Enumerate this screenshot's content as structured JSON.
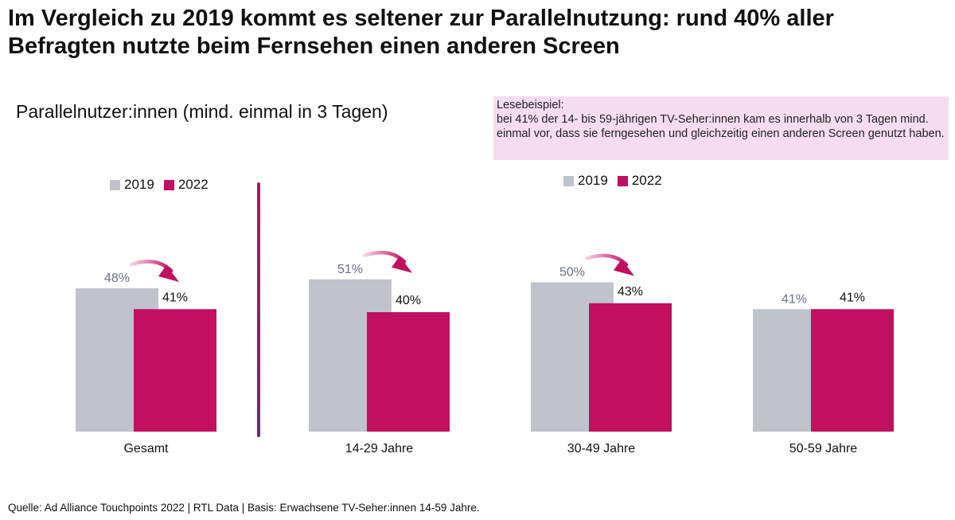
{
  "title": "Im Vergleich zu 2019 kommt es seltener zur Parallelnutzung: rund 40% aller Befragten nutzte beim Fernsehen einen anderen Screen",
  "subtitle": "Parallelnutzer:innen (mind. einmal in 3 Tagen)",
  "reading_example": {
    "heading": "Lesebeispiel:",
    "text": "bei 41% der 14- bis 59-jährigen TV-Seher:innen kam es innerhalb von 3 Tagen mind. einmal vor, dass sie ferngesehen und gleichzeitig einen anderen Screen genutzt haben."
  },
  "legend": [
    "2019",
    "2022"
  ],
  "colors": {
    "2019": "#c0c2cc",
    "2022": "#c0105f",
    "label_2019": "#6b6f80",
    "label_2022": "#111111"
  },
  "source": "Quelle: Ad Alliance Touchpoints 2022 | RTL Data | Basis: Erwachsene TV-Seher:innen 14-59 Jahre.",
  "chart_data": {
    "type": "bar",
    "categories": [
      "Gesamt",
      "14-29 Jahre",
      "30-49 Jahre",
      "50-59 Jahre"
    ],
    "series": [
      {
        "name": "2019",
        "values": [
          48,
          51,
          50,
          41
        ],
        "labels": [
          "48%",
          "51%",
          "50%",
          "41%"
        ]
      },
      {
        "name": "2022",
        "values": [
          41,
          40,
          43,
          41
        ],
        "labels": [
          "41%",
          "40%",
          "43%",
          "41%"
        ]
      }
    ],
    "unit": "%",
    "decrease_arrows": [
      "Gesamt",
      "14-29 Jahre",
      "30-49 Jahre"
    ],
    "legend_position": "top"
  }
}
